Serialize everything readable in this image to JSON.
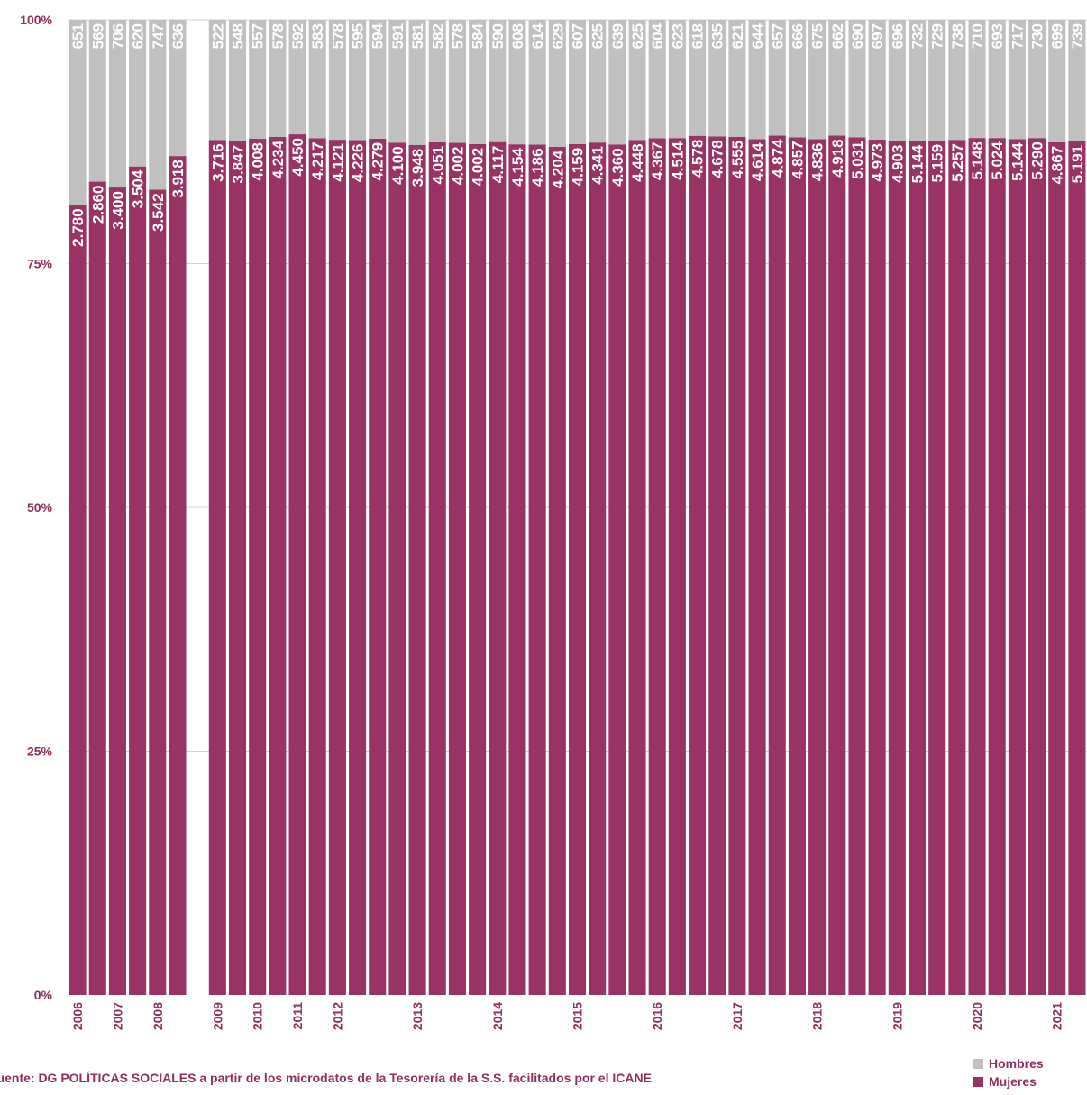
{
  "chart_data": {
    "type": "bar",
    "stacked": "percent",
    "ylim": [
      0,
      100
    ],
    "y_ticks": [
      "0%",
      "25%",
      "50%",
      "75%",
      "100%"
    ],
    "grid": true,
    "legend_position": "bottom-right",
    "source": "Fuente: DG POLÍTICAS SOCIALES a partir de los microdatos de la Tesorería de la S.S. facilitados por el ICANE",
    "year_labels": [
      "2006",
      "2007",
      "2008",
      "2009",
      "2010",
      "2011",
      "2012",
      "2013",
      "2014",
      "2015",
      "2016",
      "2017",
      "2018",
      "2019",
      "2020",
      "2021"
    ],
    "series": [
      {
        "name": "Mujeres",
        "color": "#993366",
        "values": [
          2780,
          2860,
          3400,
          3504,
          3542,
          3918,
          null,
          3716,
          3847,
          4008,
          4234,
          4450,
          4217,
          4121,
          4226,
          4279,
          4100,
          3948,
          4051,
          4002,
          4002,
          4117,
          4154,
          4186,
          4204,
          4159,
          4341,
          4360,
          4448,
          4367,
          4514,
          4578,
          4678,
          4555,
          4614,
          4874,
          4857,
          4836,
          4918,
          5031,
          4973,
          4903,
          5144,
          5159,
          5257,
          5148,
          5024,
          5144,
          5290,
          4867,
          5191
        ],
        "labels": [
          "2.780",
          "2.860",
          "3.400",
          "3.504",
          "3.542",
          "3.918",
          "",
          "3.716",
          "3.847",
          "4.008",
          "4.234",
          "4.450",
          "4.217",
          "4.121",
          "4.226",
          "4.279",
          "4.100",
          "3.948",
          "4.051",
          "4.002",
          "4.002",
          "4.117",
          "4.154",
          "4.186",
          "4.204",
          "4.159",
          "4.341",
          "4.360",
          "4.448",
          "4.367",
          "4.514",
          "4.578",
          "4.678",
          "4.555",
          "4.614",
          "4.874",
          "4.857",
          "4.836",
          "4.918",
          "5.031",
          "4.973",
          "4.903",
          "5.144",
          "5.159",
          "5.257",
          "5.148",
          "5.024",
          "5.144",
          "5.290",
          "4.867",
          "5.191"
        ]
      },
      {
        "name": "Hombres",
        "color": "#c0c0c0",
        "values": [
          651,
          569,
          706,
          620,
          747,
          636,
          null,
          522,
          548,
          557,
          578,
          592,
          583,
          578,
          595,
          594,
          591,
          581,
          582,
          578,
          584,
          590,
          608,
          614,
          629,
          607,
          625,
          639,
          625,
          604,
          623,
          618,
          635,
          621,
          644,
          657,
          666,
          675,
          662,
          690,
          697,
          696,
          732,
          729,
          738,
          710,
          693,
          717,
          730,
          699,
          739
        ],
        "labels": [
          "651",
          "569",
          "706",
          "620",
          "747",
          "636",
          "",
          "522",
          "548",
          "557",
          "578",
          "592",
          "583",
          "578",
          "595",
          "594",
          "591",
          "581",
          "582",
          "578",
          "584",
          "590",
          "608",
          "614",
          "629",
          "607",
          "625",
          "639",
          "625",
          "604",
          "623",
          "618",
          "635",
          "621",
          "644",
          "657",
          "666",
          "675",
          "662",
          "690",
          "697",
          "696",
          "732",
          "729",
          "738",
          "710",
          "693",
          "717",
          "730",
          "699",
          "739"
        ]
      }
    ]
  }
}
